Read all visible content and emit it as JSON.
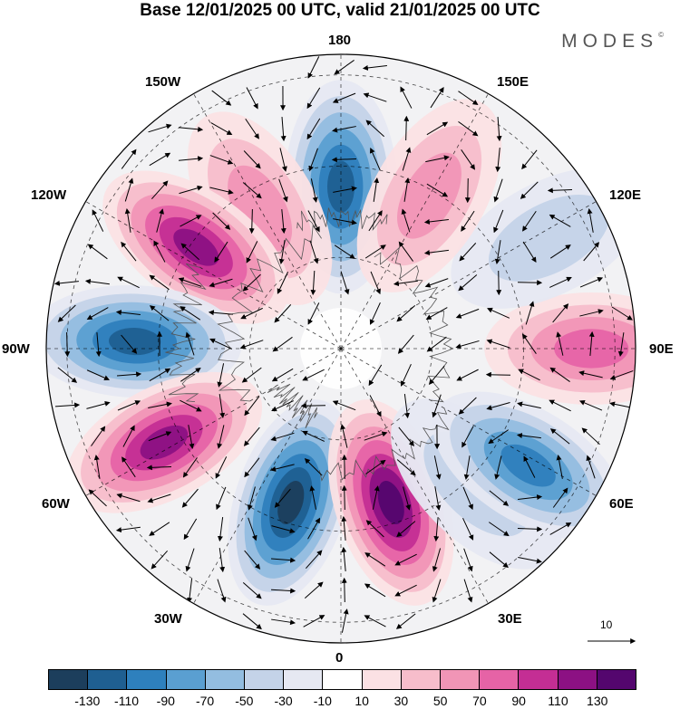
{
  "title": "Base 12/01/2025 00 UTC, valid 21/01/2025 00 UTC",
  "brand": "MODES",
  "brand_mark": "©",
  "longitude_labels": {
    "top": "180",
    "bottom": "0",
    "left": "90W",
    "right": "90E",
    "w150": "150W",
    "e150": "150E",
    "w120": "120W",
    "e120": "120E",
    "w60": "60W",
    "e60": "60E",
    "w30": "30W",
    "e30": "30E"
  },
  "reference_vector": "10",
  "colorbar": {
    "colors": [
      "#1c3e5c",
      "#1f5f91",
      "#2e80bd",
      "#5a9fd1",
      "#93bde0",
      "#c4d3e8",
      "#e6e8f2",
      "#ffffff",
      "#fbe1e4",
      "#f7bdcb",
      "#f195b6",
      "#e663a6",
      "#c42e94",
      "#8c1183",
      "#54066e"
    ],
    "labels": [
      "-130",
      "-110",
      "-90",
      "-70",
      "-50",
      "-30",
      "-10",
      "10",
      "30",
      "50",
      "70",
      "90",
      "110",
      "130"
    ]
  },
  "anomaly_centers": [
    {
      "lon": 180,
      "dist": 0.55,
      "value": -110
    },
    {
      "lon": -150,
      "dist": 0.55,
      "value": 50
    },
    {
      "lon": -125,
      "dist": 0.6,
      "value": 110
    },
    {
      "lon": -92,
      "dist": 0.7,
      "value": -120
    },
    {
      "lon": -62,
      "dist": 0.68,
      "value": 110
    },
    {
      "lon": -18,
      "dist": 0.55,
      "value": -130
    },
    {
      "lon": 18,
      "dist": 0.55,
      "value": 130
    },
    {
      "lon": 45,
      "dist": 0.65,
      "value": -40
    },
    {
      "lon": 58,
      "dist": 0.75,
      "value": -100
    },
    {
      "lon": 90,
      "dist": 0.85,
      "value": 70
    },
    {
      "lon": 118,
      "dist": 0.8,
      "value": -40
    },
    {
      "lon": 150,
      "dist": 0.6,
      "value": 60
    }
  ]
}
